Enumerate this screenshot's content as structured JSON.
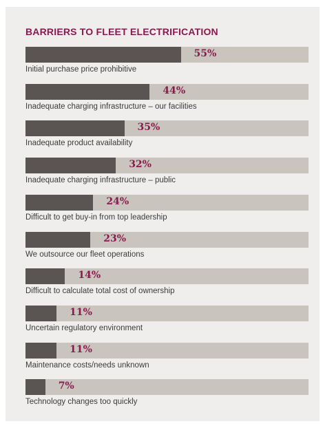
{
  "chart_data": {
    "type": "bar",
    "orientation": "horizontal",
    "title": "BARRIERS TO FLEET ELECTRIFICATION",
    "categories": [
      "Initial purchase price prohibitive",
      "Inadequate charging infrastructure – our facilities",
      "Inadequate product availability",
      "Inadequate charging infrastructure – public",
      "Difficult to get buy-in from top leadership",
      "We outsource our fleet operations",
      "Difficult to calculate total cost of ownership",
      "Uncertain regulatory environment",
      "Maintenance costs/needs unknown",
      "Technology changes too quickly"
    ],
    "values": [
      55,
      44,
      35,
      32,
      24,
      23,
      14,
      11,
      11,
      7
    ],
    "value_labels": [
      "55%",
      "44%",
      "35%",
      "32%",
      "24%",
      "23%",
      "14%",
      "11%",
      "11%",
      "7%"
    ],
    "unit": "%",
    "xlim": [
      0,
      100
    ],
    "grid": false,
    "legend": "none",
    "colors": {
      "bar": "#5a5552",
      "track": "#cac4be",
      "background": "#f0eeec",
      "accent": "#8a1a4e",
      "label": "#3b3b3b"
    }
  }
}
